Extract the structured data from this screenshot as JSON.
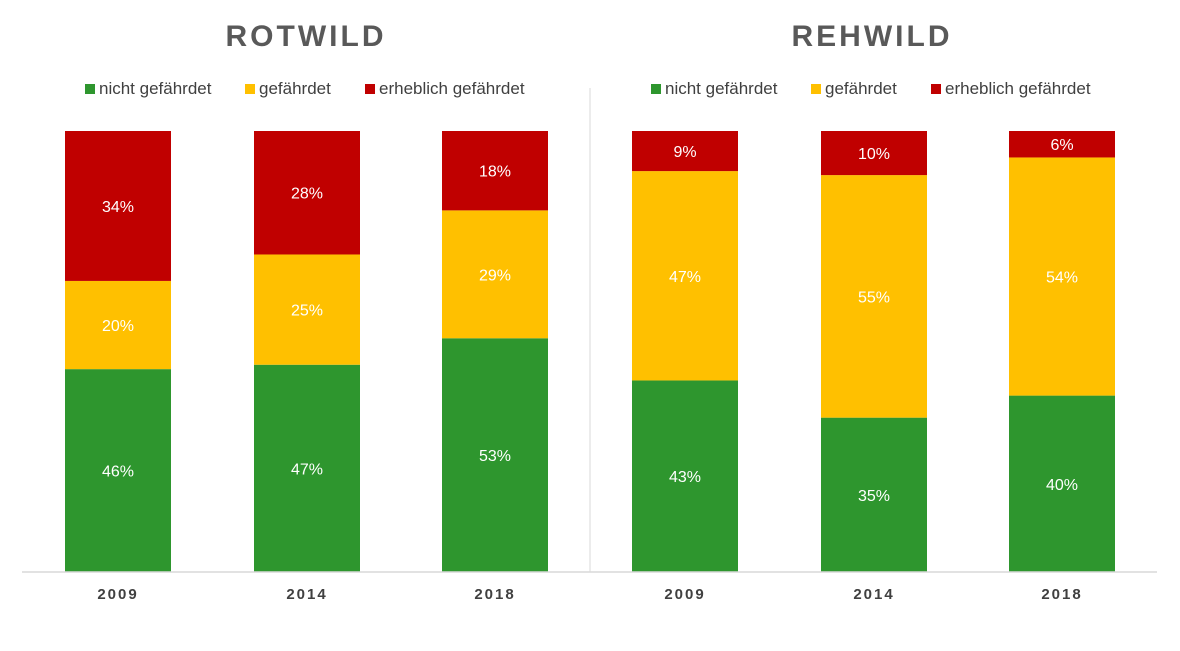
{
  "chart_data": [
    {
      "type": "bar",
      "stacked": true,
      "title": "ROTWILD",
      "xlabel": "",
      "ylabel": "",
      "ylim": [
        0,
        100
      ],
      "categories": [
        "2009",
        "2014",
        "2018"
      ],
      "series": [
        {
          "name": "nicht gefährdet",
          "color": "#2e962e",
          "values": [
            46,
            47,
            53
          ],
          "labels": [
            "46%",
            "47%",
            "53%"
          ]
        },
        {
          "name": "gefährdet",
          "color": "#ffc000",
          "values": [
            20,
            25,
            29
          ],
          "labels": [
            "20%",
            "25%",
            "29%"
          ]
        },
        {
          "name": "erheblich gefährdet",
          "color": "#c00000",
          "values": [
            34,
            28,
            18
          ],
          "labels": [
            "34%",
            "28%",
            "18%"
          ]
        }
      ],
      "legend_position": "top",
      "grid": false
    },
    {
      "type": "bar",
      "stacked": true,
      "title": "REHWILD",
      "xlabel": "",
      "ylabel": "",
      "ylim": [
        0,
        100
      ],
      "categories": [
        "2009",
        "2014",
        "2018"
      ],
      "series": [
        {
          "name": "nicht gefährdet",
          "color": "#2e962e",
          "values": [
            43,
            35,
            40
          ],
          "labels": [
            "43%",
            "35%",
            "40%"
          ]
        },
        {
          "name": "gefährdet",
          "color": "#ffc000",
          "values": [
            47,
            55,
            54
          ],
          "labels": [
            "47%",
            "55%",
            "54%"
          ]
        },
        {
          "name": "erheblich gefährdet",
          "color": "#c00000",
          "values": [
            9,
            10,
            6
          ],
          "labels": [
            "9%",
            "10%",
            "6%"
          ]
        }
      ],
      "legend_position": "top",
      "grid": false
    }
  ]
}
